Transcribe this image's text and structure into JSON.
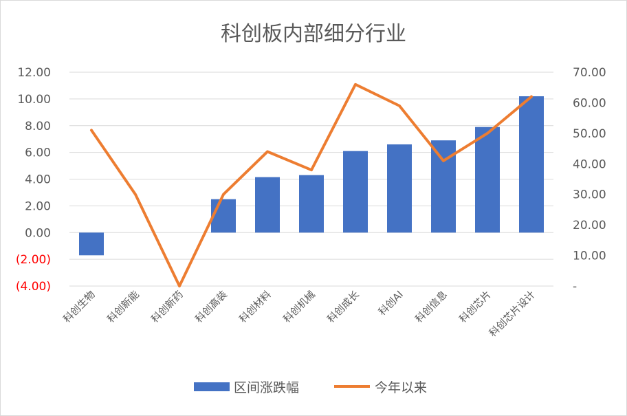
{
  "chart_data": {
    "type": "bar",
    "title": "科创板内部细分行业",
    "categories": [
      "科创生物",
      "科创新能",
      "科创新药",
      "科创高装",
      "科创材料",
      "科创机械",
      "科创成长",
      "科创AI",
      "科创信息",
      "科创芯片",
      "科创芯片设计"
    ],
    "series": [
      {
        "name": "区间涨跌幅",
        "type": "bar",
        "axis": "left",
        "color": "#4472C4",
        "values": [
          -1.7,
          null,
          null,
          2.5,
          4.15,
          4.3,
          6.1,
          6.6,
          6.9,
          7.9,
          10.2
        ]
      },
      {
        "name": "今年以来",
        "type": "line",
        "axis": "right",
        "color": "#ED7D31",
        "values": [
          51,
          30,
          0,
          30,
          44,
          38,
          66,
          59,
          41,
          50,
          62
        ]
      }
    ],
    "left_axis": {
      "ylim": [
        -4,
        12
      ],
      "ticks": [
        "12.00",
        "10.00",
        "8.00",
        "6.00",
        "4.00",
        "2.00",
        "0.00",
        "(2.00)",
        "(4.00)"
      ]
    },
    "right_axis": {
      "ylim": [
        0,
        70
      ],
      "ticks": [
        "70.00",
        "60.00",
        "50.00",
        "40.00",
        "30.00",
        "20.00",
        "10.00",
        "-"
      ]
    },
    "grid": true,
    "legend_position": "bottom"
  }
}
